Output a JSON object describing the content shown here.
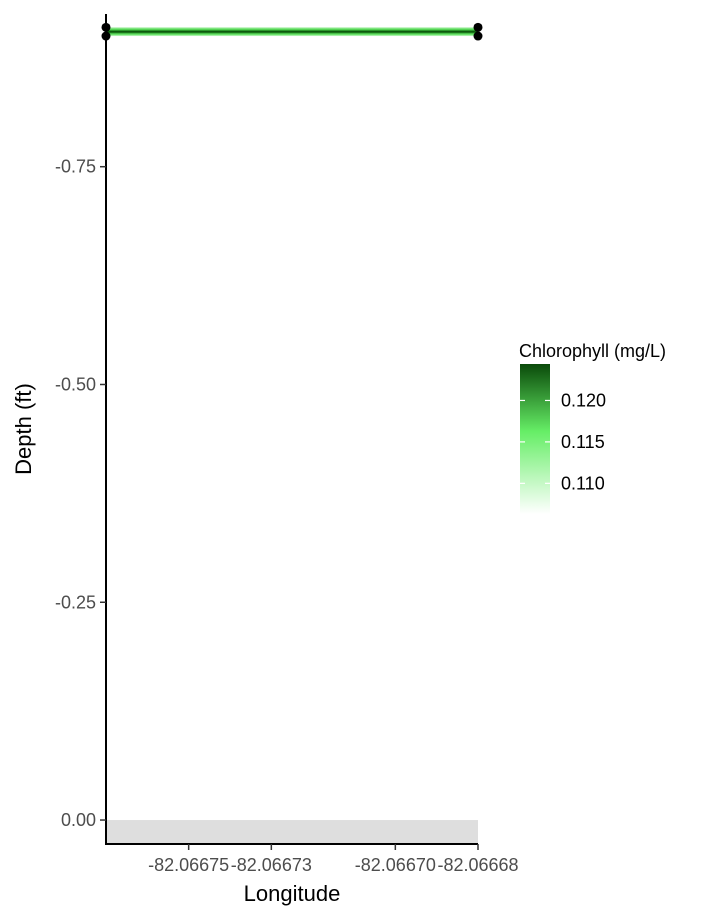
{
  "chart_data": {
    "type": "scatter",
    "xlabel": "Longitude",
    "ylabel": "Depth (ft)",
    "x_ticks": [
      "-82.06675",
      "-82.06673",
      "-82.06670",
      "-82.06668"
    ],
    "x_tick_values": [
      -82.06675,
      -82.06673,
      -82.0667,
      -82.06668
    ],
    "y_ticks": [
      "0.00",
      "-0.25",
      "-0.50",
      "-0.75"
    ],
    "y_tick_values": [
      0,
      -0.25,
      -0.5,
      -0.75
    ],
    "xlim": [
      -82.06677,
      -82.06668
    ],
    "y_reversed": true,
    "ylim": [
      -0.9253,
      0.0275
    ],
    "grid": false,
    "legend_position": "right",
    "legend": {
      "title": "Chlorophyll (mg/L)",
      "labels": [
        "0.120",
        "0.115",
        "0.110"
      ],
      "values": [
        0.12,
        0.115,
        0.11
      ],
      "range": [
        0.1063,
        0.1244
      ],
      "low_color": "#ffffff",
      "mid_color": "#66ee66",
      "high_color": "#0a4a0a"
    },
    "points": [
      {
        "x": -82.06677,
        "y": -0.9,
        "value": 0.12
      },
      {
        "x": -82.06677,
        "y": -0.91,
        "value": 0.12
      },
      {
        "x": -82.06668,
        "y": -0.9,
        "value": 0.12
      },
      {
        "x": -82.06668,
        "y": -0.91,
        "value": 0.12
      }
    ],
    "ground_band": {
      "from": 0,
      "to": 0.0275,
      "color": "#dedede"
    }
  }
}
